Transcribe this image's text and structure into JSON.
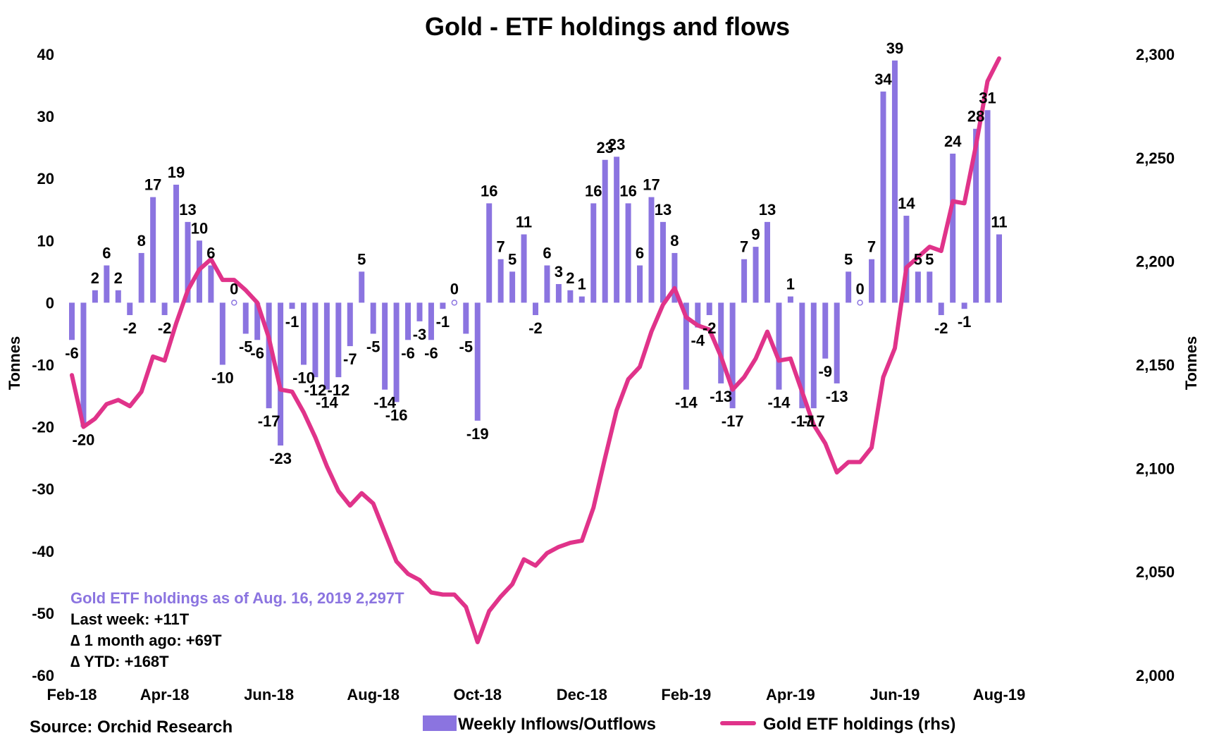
{
  "chart_data": {
    "type": "bar",
    "title": "Gold - ETF holdings and flows",
    "ylabel_left": "Tonnes",
    "ylabel_right": "Tonnes",
    "y_left_ticks": [
      "40",
      "30",
      "20",
      "10",
      "0",
      "-10",
      "-20",
      "-30",
      "-40",
      "-50",
      "-60"
    ],
    "y_right_ticks": [
      "2,300",
      "2,250",
      "2,200",
      "2,150",
      "2,100",
      "2,050",
      "2,000"
    ],
    "ylim_left": [
      -60,
      40
    ],
    "ylim_right": [
      2000,
      2300
    ],
    "x_ticks": [
      {
        "label": "Feb-18",
        "index": 0
      },
      {
        "label": "Apr-18",
        "index": 8
      },
      {
        "label": "Jun-18",
        "index": 17
      },
      {
        "label": "Aug-18",
        "index": 26
      },
      {
        "label": "Oct-18",
        "index": 35
      },
      {
        "label": "Dec-18",
        "index": 44
      },
      {
        "label": "Feb-19",
        "index": 53
      },
      {
        "label": "Apr-19",
        "index": 62
      },
      {
        "label": "Jun-19",
        "index": 71
      },
      {
        "label": "Aug-19",
        "index": 80
      }
    ],
    "series": [
      {
        "name": "Weekly Inflows/Outflows",
        "type": "bar",
        "color": "#8b74e0",
        "values": [
          -6,
          -20,
          2,
          6,
          2,
          -2,
          8,
          17,
          -2,
          19,
          13,
          10,
          6,
          -10,
          0,
          -5,
          -6,
          -17,
          -23,
          -1,
          -10,
          -12,
          -14,
          -12,
          -7,
          5,
          -5,
          -14,
          -16,
          -6,
          -3,
          -6,
          -1,
          0,
          -5,
          -19,
          16,
          7,
          5,
          11,
          -2,
          6,
          3,
          2,
          1,
          16,
          23,
          23.5,
          16,
          6,
          17,
          13,
          8,
          -14,
          -4,
          -2,
          -13,
          -17,
          7,
          9,
          13,
          -14,
          1,
          -17,
          -17,
          -9,
          -13,
          5,
          0,
          7,
          34,
          39,
          14,
          5,
          5,
          -2,
          24,
          -1,
          28,
          31,
          11
        ],
        "labels": [
          "-6",
          "-20",
          "2",
          "6",
          "2",
          "-2",
          "8",
          "17",
          "-2",
          "19",
          "13",
          "10",
          "6",
          "-10",
          "0",
          "-5",
          "-6",
          "-17",
          "-23",
          "-1",
          "-10",
          "-12",
          "-14",
          "-12",
          "-7",
          "5",
          "-5",
          "-14",
          "-16",
          "-6",
          "-3",
          "-6",
          "-1",
          "0",
          "-5",
          "-19",
          "16",
          "7",
          "5",
          "11",
          "-2",
          "6",
          "3",
          "2",
          "1",
          "16",
          "23",
          "23",
          "16",
          "6",
          "17",
          "13",
          "8",
          "-14",
          "-4",
          "-2",
          "-13",
          "-17",
          "7",
          "9",
          "13",
          "-14",
          "1",
          "-17",
          "-17",
          "-9",
          "-13",
          "5",
          "0",
          "7",
          "34",
          "39",
          "14",
          "5",
          "5",
          "-2",
          "24",
          "-1",
          "28",
          "31",
          "11"
        ]
      },
      {
        "name": "Gold ETF holdings (rhs)",
        "type": "line",
        "axis": "right",
        "color": "#e0338a",
        "values": [
          2145,
          2120,
          2124,
          2131,
          2133,
          2130,
          2137,
          2154,
          2152,
          2170,
          2186,
          2196,
          2201,
          2191,
          2191,
          2186,
          2180,
          2163,
          2138,
          2137,
          2127,
          2115,
          2101,
          2089,
          2082,
          2088,
          2083,
          2069,
          2055,
          2049,
          2046,
          2040,
          2039,
          2039,
          2033,
          2016,
          2031,
          2038,
          2044,
          2056,
          2053,
          2059,
          2062,
          2064,
          2065,
          2081,
          2105,
          2128,
          2143,
          2149,
          2166,
          2179,
          2187,
          2173,
          2169,
          2167,
          2154,
          2138,
          2144,
          2153,
          2166,
          2152,
          2153,
          2137,
          2121,
          2112,
          2098,
          2103,
          2103,
          2110,
          2144,
          2158,
          2197,
          2202,
          2207,
          2205,
          2229,
          2228,
          2256,
          2287,
          2298
        ]
      }
    ],
    "legend": [
      {
        "label": "Weekly Inflows/Outflows",
        "color": "#8b74e0",
        "kind": "bar"
      },
      {
        "label": "Gold ETF holdings (rhs)",
        "color": "#e0338a",
        "kind": "line"
      }
    ],
    "legend_position": "bottom",
    "grid": false,
    "annotations": {
      "headline": "Gold ETF holdings as of Aug. 16, 2019 2,297T",
      "lines": [
        "Last week: +11T",
        "∆ 1 month ago: +69T",
        "∆ YTD: +168T"
      ]
    },
    "source": "Source: Orchid Research"
  }
}
